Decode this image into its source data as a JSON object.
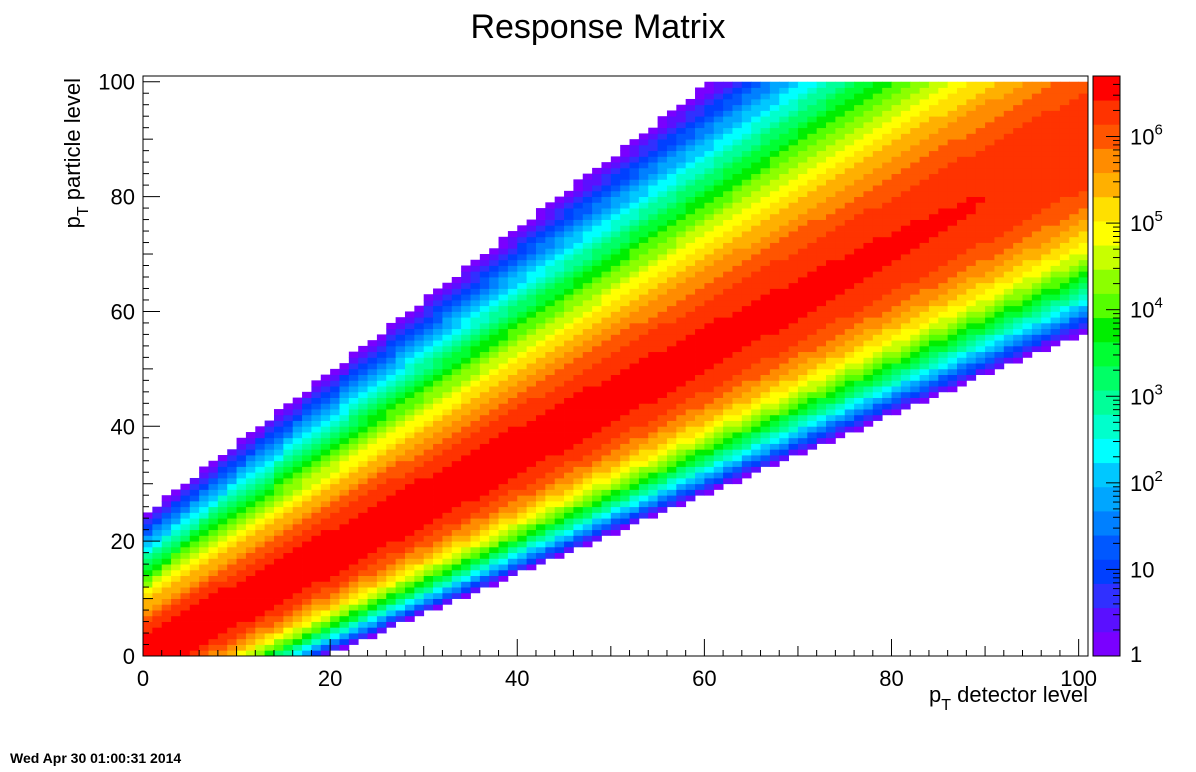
{
  "chart_data": {
    "type": "heatmap",
    "title": "Response Matrix",
    "xlabel": {
      "main": "p",
      "sub": "T",
      "rest": " detector level"
    },
    "ylabel": {
      "main": "p",
      "sub": "T",
      "rest": " particle level"
    },
    "xlim": [
      0,
      101
    ],
    "ylim": [
      0,
      101
    ],
    "x_ticks": [
      "0",
      "20",
      "40",
      "60",
      "80",
      "100"
    ],
    "x_tick_values": [
      0,
      20,
      40,
      60,
      80,
      100
    ],
    "y_ticks": [
      "0",
      "20",
      "40",
      "60",
      "80",
      "100"
    ],
    "y_tick_values": [
      0,
      20,
      40,
      60,
      80,
      100
    ],
    "bins": {
      "x_min": 0,
      "x_max": 101,
      "nx": 101,
      "y_min": 0,
      "y_max": 100,
      "ny": 100
    },
    "z_scale": "log",
    "z_range": [
      1,
      5000000
    ],
    "colorbar_ticks": [
      {
        "value": 1,
        "base": "1",
        "exp": ""
      },
      {
        "value": 10,
        "base": "10",
        "exp": ""
      },
      {
        "value": 100,
        "base": "10",
        "exp": "2"
      },
      {
        "value": 1000,
        "base": "10",
        "exp": "3"
      },
      {
        "value": 10000,
        "base": "10",
        "exp": "4"
      },
      {
        "value": 100000,
        "base": "10",
        "exp": "5"
      },
      {
        "value": 1000000,
        "base": "10",
        "exp": "6"
      }
    ],
    "palette": [
      "#7a00ff",
      "#5a10ff",
      "#3030ff",
      "#0040ff",
      "#0058ff",
      "#0080ff",
      "#00a6ff",
      "#00c8ff",
      "#00ffff",
      "#00ffcc",
      "#00ff99",
      "#00ff66",
      "#00ff33",
      "#00ee00",
      "#55ff00",
      "#8cff00",
      "#c8ff00",
      "#ffff00",
      "#ffe000",
      "#ffb000",
      "#ff8c00",
      "#ff5500",
      "#ff3300",
      "#ff0000"
    ],
    "response_model": {
      "mean_ratio": 1.12,
      "width_constant": 3.5,
      "width_fraction": 0.06,
      "peak_density": 5000000,
      "density_falloff": 0.04
    },
    "grid": false,
    "legend": "colorbar-right"
  },
  "timestamp": "Wed Apr 30 01:00:31 2014"
}
